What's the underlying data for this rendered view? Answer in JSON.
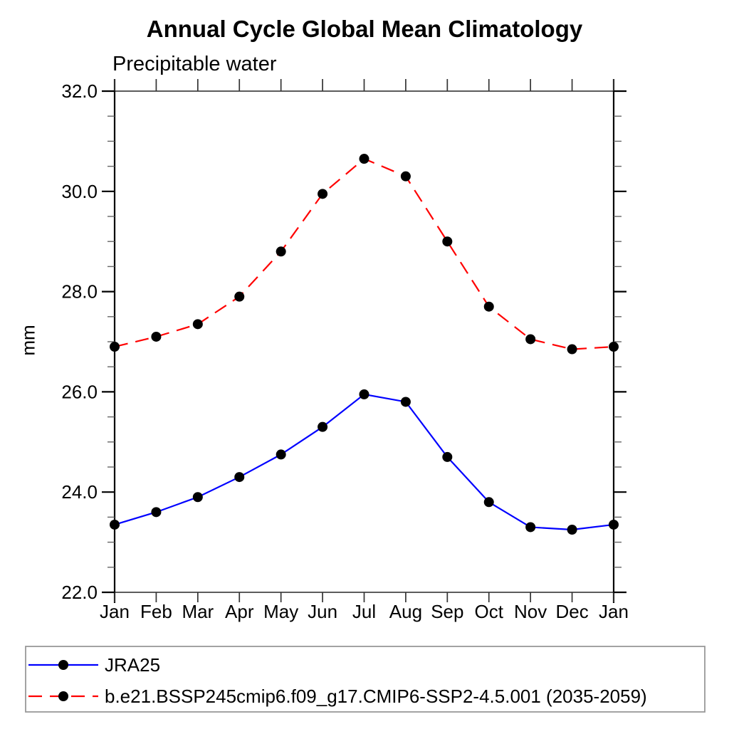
{
  "page": {
    "background": "#ffffff"
  },
  "chart_data": {
    "type": "line",
    "title": "Annual Cycle Global Mean Climatology",
    "subtitle": "Precipitable water",
    "ylabel": "mm",
    "x_tick_labels": [
      "Jan",
      "Feb",
      "Mar",
      "Apr",
      "May",
      "Jun",
      "Jul",
      "Aug",
      "Sep",
      "Oct",
      "Nov",
      "Dec",
      "Jan"
    ],
    "ylim": [
      22.0,
      32.0
    ],
    "y_major_ticks": [
      22.0,
      24.0,
      26.0,
      28.0,
      30.0,
      32.0
    ],
    "y_major_tick_labels": [
      "22.0",
      "24.0",
      "26.0",
      "28.0",
      "30.0",
      "32.0"
    ],
    "y_minor_step": 0.5,
    "grid": false,
    "legend_position": "bottom-left-box",
    "marker": {
      "shape": "circle",
      "color": "#000000",
      "radius": 7
    },
    "series": [
      {
        "name": "JRA25",
        "color": "#0000ff",
        "line_style": "solid",
        "values": [
          23.35,
          23.6,
          23.9,
          24.3,
          24.75,
          25.3,
          25.95,
          25.8,
          24.7,
          23.8,
          23.3,
          23.25,
          23.35
        ]
      },
      {
        "name": "b.e21.BSSP245cmip6.f09_g17.CMIP6-SSP2-4.5.001 (2035-2059)",
        "color": "#ff0000",
        "line_style": "dashed",
        "values": [
          26.9,
          27.1,
          27.35,
          27.9,
          28.8,
          29.95,
          30.65,
          30.3,
          29.0,
          27.7,
          27.05,
          26.85,
          26.9
        ]
      }
    ]
  }
}
